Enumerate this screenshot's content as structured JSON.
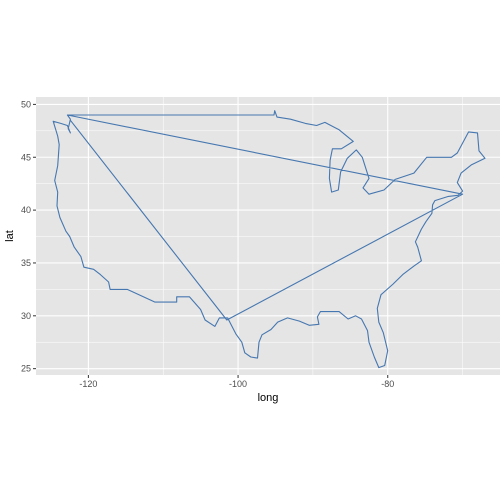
{
  "chart_data": {
    "type": "line",
    "xlabel": "long",
    "ylabel": "lat",
    "xlim": [
      -127,
      -65
    ],
    "ylim": [
      24.4,
      50.7
    ],
    "x_ticks": [
      -120,
      -100,
      -80
    ],
    "y_ticks": [
      25,
      30,
      35,
      40,
      45,
      50
    ],
    "x_tick_labels": [
      "-120",
      "-100",
      "-80"
    ],
    "y_tick_labels": [
      "25",
      "30",
      "35",
      "40",
      "45",
      "50"
    ],
    "grid": true,
    "colors": {
      "panel_bg": "#e5e5e5",
      "grid": "#ffffff",
      "line": "#4677b0"
    },
    "series": [
      {
        "values": [
          [
            -122.8,
            49.0
          ],
          [
            -95.2,
            49.0
          ],
          [
            -95.1,
            49.4
          ],
          [
            -94.8,
            48.8
          ],
          [
            -93.0,
            48.6
          ],
          [
            -91.0,
            48.2
          ],
          [
            -89.5,
            48.0
          ],
          [
            -88.4,
            48.3
          ],
          [
            -86.5,
            47.6
          ],
          [
            -84.6,
            46.5
          ],
          [
            -86.2,
            45.8
          ],
          [
            -87.4,
            45.8
          ],
          [
            -87.7,
            44.7
          ],
          [
            -87.8,
            43.0
          ],
          [
            -87.5,
            41.7
          ],
          [
            -86.6,
            41.9
          ],
          [
            -86.3,
            43.6
          ],
          [
            -85.4,
            44.9
          ],
          [
            -84.2,
            45.7
          ],
          [
            -83.4,
            45.0
          ],
          [
            -82.5,
            43.0
          ],
          [
            -83.3,
            42.1
          ],
          [
            -82.5,
            41.5
          ],
          [
            -80.5,
            41.9
          ],
          [
            -79.0,
            42.9
          ],
          [
            -76.5,
            43.5
          ],
          [
            -74.8,
            45.0
          ],
          [
            -71.5,
            45.0
          ],
          [
            -70.7,
            45.4
          ],
          [
            -69.2,
            47.4
          ],
          [
            -68.0,
            47.3
          ],
          [
            -67.8,
            45.6
          ],
          [
            -67.0,
            44.9
          ],
          [
            -68.8,
            44.3
          ],
          [
            -70.2,
            43.5
          ],
          [
            -70.7,
            42.6
          ],
          [
            -70.0,
            41.8
          ],
          [
            -70.6,
            41.4
          ],
          [
            -71.9,
            41.3
          ],
          [
            -73.7,
            40.9
          ],
          [
            -74.0,
            40.5
          ],
          [
            -74.1,
            39.7
          ],
          [
            -74.9,
            38.9
          ],
          [
            -75.5,
            38.2
          ],
          [
            -76.3,
            37.0
          ],
          [
            -76.0,
            36.5
          ],
          [
            -75.5,
            35.2
          ],
          [
            -76.5,
            34.7
          ],
          [
            -78.0,
            33.9
          ],
          [
            -79.3,
            33.0
          ],
          [
            -80.9,
            32.0
          ],
          [
            -81.4,
            30.7
          ],
          [
            -81.2,
            29.4
          ],
          [
            -80.6,
            28.4
          ],
          [
            -80.0,
            26.7
          ],
          [
            -80.4,
            25.3
          ],
          [
            -81.2,
            25.1
          ],
          [
            -81.8,
            26.1
          ],
          [
            -82.5,
            27.5
          ],
          [
            -82.7,
            28.6
          ],
          [
            -83.5,
            29.7
          ],
          [
            -84.3,
            30.0
          ],
          [
            -85.3,
            29.7
          ],
          [
            -86.5,
            30.4
          ],
          [
            -88.2,
            30.4
          ],
          [
            -89.0,
            30.4
          ],
          [
            -89.4,
            29.9
          ],
          [
            -89.2,
            29.2
          ],
          [
            -90.5,
            29.1
          ],
          [
            -91.8,
            29.5
          ],
          [
            -93.4,
            29.8
          ],
          [
            -94.7,
            29.4
          ],
          [
            -95.6,
            28.7
          ],
          [
            -96.8,
            28.2
          ],
          [
            -97.2,
            27.5
          ],
          [
            -97.4,
            26.0
          ],
          [
            -98.3,
            26.1
          ],
          [
            -99.1,
            26.5
          ],
          [
            -99.5,
            27.5
          ],
          [
            -100.3,
            28.3
          ],
          [
            -101.4,
            29.8
          ],
          [
            -102.5,
            29.8
          ],
          [
            -103.1,
            29.0
          ],
          [
            -104.4,
            29.6
          ],
          [
            -105.0,
            30.6
          ],
          [
            -106.5,
            31.8
          ],
          [
            -108.2,
            31.8
          ],
          [
            -108.2,
            31.3
          ],
          [
            -111.1,
            31.3
          ],
          [
            -114.8,
            32.5
          ],
          [
            -117.1,
            32.5
          ],
          [
            -117.3,
            33.2
          ],
          [
            -118.4,
            33.9
          ],
          [
            -119.3,
            34.4
          ],
          [
            -120.6,
            34.6
          ],
          [
            -121.0,
            35.6
          ],
          [
            -121.9,
            36.5
          ],
          [
            -122.5,
            37.5
          ],
          [
            -123.0,
            38.0
          ],
          [
            -123.8,
            39.3
          ],
          [
            -124.2,
            40.4
          ],
          [
            -124.1,
            41.7
          ],
          [
            -124.5,
            42.8
          ],
          [
            -124.1,
            44.2
          ],
          [
            -123.9,
            46.2
          ],
          [
            -124.1,
            47.0
          ],
          [
            -124.7,
            48.4
          ],
          [
            -123.7,
            48.2
          ],
          [
            -122.8,
            48.0
          ],
          [
            -122.4,
            47.3
          ],
          [
            -122.7,
            47.7
          ],
          [
            -122.4,
            48.6
          ],
          [
            -122.8,
            49.0
          ],
          [
            -70.0,
            41.5
          ],
          [
            -101.5,
            29.6
          ],
          [
            -122.4,
            48.5
          ]
        ]
      }
    ]
  }
}
